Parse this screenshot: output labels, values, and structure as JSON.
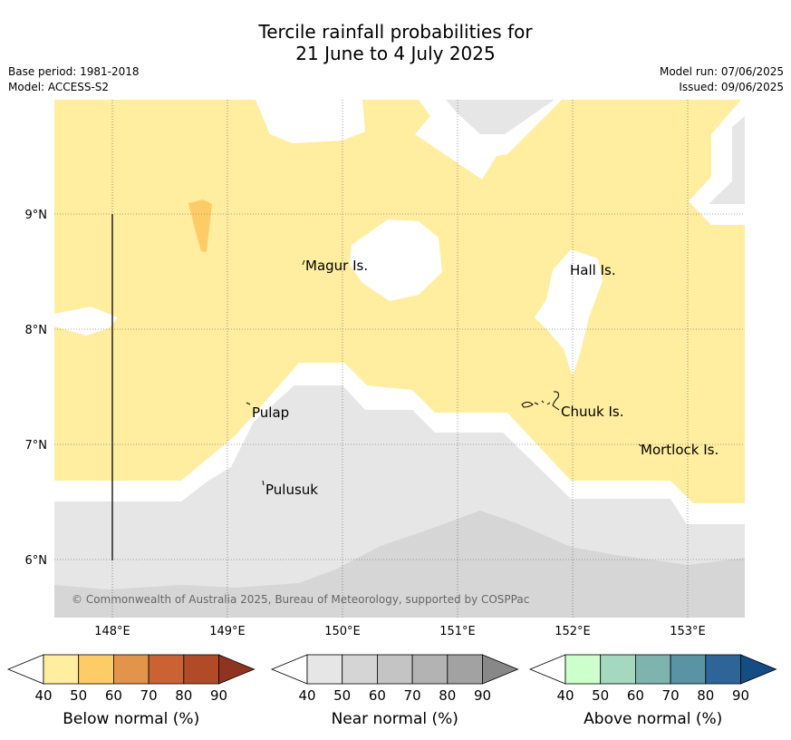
{
  "title": {
    "line1": "Tercile rainfall probabilities for",
    "line2": "21 June to 4 July 2025"
  },
  "meta": {
    "base_period": "Base period: 1981-2018",
    "model": "Model: ACCESS-S2",
    "model_run": "Model run: 07/06/2025",
    "issued": "Issued: 09/06/2025"
  },
  "map": {
    "lon_range": [
      147.5,
      153.5
    ],
    "lat_range": [
      5.5,
      10.0
    ],
    "x_ticks": [
      "148°E",
      "149°E",
      "150°E",
      "151°E",
      "152°E",
      "153°E"
    ],
    "y_ticks": [
      "9°N",
      "8°N",
      "7°N",
      "6°N"
    ],
    "places": [
      {
        "name": "Magur Is."
      },
      {
        "name": "Hall Is."
      },
      {
        "name": "Pulap"
      },
      {
        "name": "Chuuk Is."
      },
      {
        "name": "Mortlock Is."
      },
      {
        "name": "Pulusuk"
      }
    ],
    "copyright": "© Commonwealth of Australia 2025, Bureau of Meteorology, supported by COSPPac"
  },
  "colorbars": [
    {
      "label": "Below normal (%)",
      "ticks": [
        "40",
        "50",
        "60",
        "70",
        "80",
        "90"
      ],
      "colors": [
        "#ffeda0",
        "#fecc66",
        "#e2944a",
        "#cc6233",
        "#b14b27",
        "#8e3421"
      ]
    },
    {
      "label": "Near normal (%)",
      "ticks": [
        "40",
        "50",
        "60",
        "70",
        "80",
        "90"
      ],
      "colors": [
        "#e6e6e6",
        "#d5d5d5",
        "#c4c4c4",
        "#b3b3b3",
        "#a2a2a2",
        "#888888"
      ]
    },
    {
      "label": "Above normal (%)",
      "ticks": [
        "40",
        "50",
        "60",
        "70",
        "80",
        "90"
      ],
      "colors": [
        "#ccffcc",
        "#a5d9bf",
        "#7fb3ae",
        "#5a93a3",
        "#2e6599",
        "#144d84"
      ]
    }
  ]
}
